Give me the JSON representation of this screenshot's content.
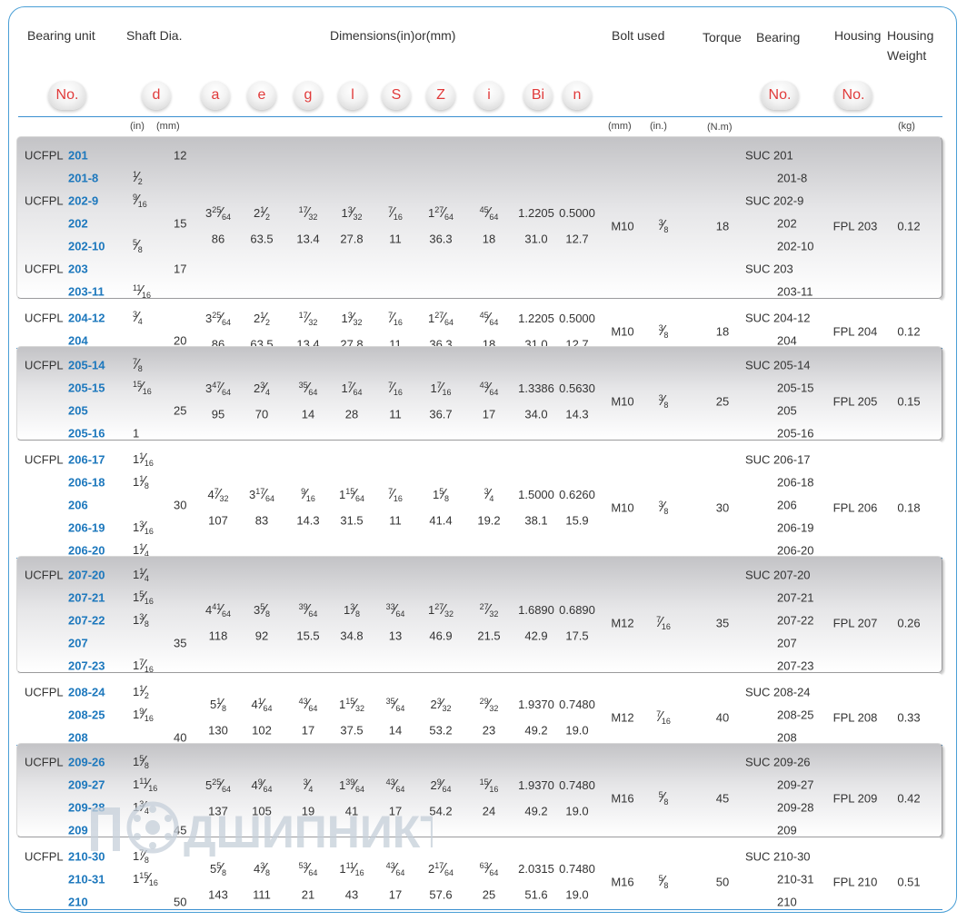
{
  "headers": {
    "bearing_unit": "Bearing unit",
    "shaft_dia": "Shaft Dia.",
    "dimensions": "Dimensions(in)or(mm)",
    "bolt_used": "Bolt  used",
    "torque": "Torque",
    "bearing": "Bearing",
    "housing": "Housing",
    "housing_weight_1": "Housing",
    "housing_weight_2": "Weight"
  },
  "symbols": {
    "no": "No.",
    "d": "d",
    "a": "a",
    "e": "e",
    "g": "g",
    "l": "l",
    "s": "S",
    "z": "Z",
    "i": "i",
    "bi": "Bi",
    "n": "n",
    "bearing_no": "No.",
    "housing_no": "No."
  },
  "units": {
    "in": "(in)",
    "mm": "(mm)",
    "bolt_mm": "(mm)",
    "bolt_in": "(in.)",
    "torque": "(N.m)",
    "weight": "(kg)"
  },
  "groups": [
    {
      "rows": [
        {
          "pre": "UCFPL",
          "num": "201",
          "d_mm": "12",
          "bearing": "SUC 201"
        },
        {
          "pre": "",
          "num": "201-8",
          "d_in": "1/2",
          "bearing": "201-8"
        },
        {
          "pre": "UCFPL",
          "num": "202-9",
          "d_in": "9/16",
          "bearing": "SUC 202-9"
        },
        {
          "pre": "",
          "num": "202",
          "d_mm": "15",
          "bearing": "202"
        },
        {
          "pre": "",
          "num": "202-10",
          "d_in": "5/8",
          "bearing": "202-10"
        },
        {
          "pre": "UCFPL",
          "num": "203",
          "d_mm": "17",
          "bearing": "SUC 203"
        },
        {
          "pre": "",
          "num": "203-11",
          "d_in": "11/16",
          "bearing": "203-11"
        }
      ],
      "in": [
        "3 25/64",
        "2 1/2",
        "17/32",
        "1 3/32",
        "7/16",
        "1 27/64",
        "45/64",
        "1.2205",
        "0.5000"
      ],
      "mm": [
        "86",
        "63.5",
        "13.4",
        "27.8",
        "11",
        "36.3",
        "18",
        "31.0",
        "12.7"
      ],
      "bolt_mm": "M10",
      "bolt_in": "3/8",
      "torque": "18",
      "housing": "FPL 203",
      "weight": "0.12"
    },
    {
      "rows": [
        {
          "pre": "UCFPL",
          "num": "204-12",
          "d_in": "3/4",
          "bearing": "SUC 204-12"
        },
        {
          "pre": "",
          "num": "204",
          "d_mm": "20",
          "bearing": "204"
        }
      ],
      "in": [
        "3 25/64",
        "2 1/2",
        "17/32",
        "1 3/32",
        "7/16",
        "1 27/64",
        "45/64",
        "1.2205",
        "0.5000"
      ],
      "mm": [
        "86",
        "63.5",
        "13.4",
        "27.8",
        "11",
        "36.3",
        "18",
        "31.0",
        "12.7"
      ],
      "bolt_mm": "M10",
      "bolt_in": "3/8",
      "torque": "18",
      "housing": "FPL 204",
      "weight": "0.12"
    },
    {
      "rows": [
        {
          "pre": "UCFPL",
          "num": "205-14",
          "d_in": "7/8",
          "bearing": "SUC 205-14"
        },
        {
          "pre": "",
          "num": "205-15",
          "d_in": "15/16",
          "bearing": "205-15"
        },
        {
          "pre": "",
          "num": "205",
          "d_mm": "25",
          "bearing": "205"
        },
        {
          "pre": "",
          "num": "205-16",
          "d_in": "1",
          "bearing": "205-16"
        }
      ],
      "in": [
        "3 47/64",
        "2 3/4",
        "35/64",
        "1 7/64",
        "7/16",
        "1 7/16",
        "43/64",
        "1.3386",
        "0.5630"
      ],
      "mm": [
        "95",
        "70",
        "14",
        "28",
        "11",
        "36.7",
        "17",
        "34.0",
        "14.3"
      ],
      "bolt_mm": "M10",
      "bolt_in": "3/8",
      "torque": "25",
      "housing": "FPL 205",
      "weight": "0.15"
    },
    {
      "rows": [
        {
          "pre": "UCFPL",
          "num": "206-17",
          "d_in": "1 1/16",
          "bearing": "SUC 206-17"
        },
        {
          "pre": "",
          "num": "206-18",
          "d_in": "1 1/8",
          "bearing": "206-18"
        },
        {
          "pre": "",
          "num": "206",
          "d_mm": "30",
          "bearing": "206"
        },
        {
          "pre": "",
          "num": "206-19",
          "d_in": "1 3/16",
          "bearing": "206-19"
        },
        {
          "pre": "",
          "num": "206-20",
          "d_in": "1 1/4",
          "bearing": "206-20"
        }
      ],
      "in": [
        "4 7/32",
        "3 17/64",
        "9/16",
        "1 15/64",
        "7/16",
        "1 5/8",
        "3/4",
        "1.5000",
        "0.6260"
      ],
      "mm": [
        "107",
        "83",
        "14.3",
        "31.5",
        "11",
        "41.4",
        "19.2",
        "38.1",
        "15.9"
      ],
      "bolt_mm": "M10",
      "bolt_in": "3/8",
      "torque": "30",
      "housing": "FPL 206",
      "weight": "0.18"
    },
    {
      "rows": [
        {
          "pre": "UCFPL",
          "num": "207-20",
          "d_in": "1 1/4",
          "bearing": "SUC 207-20"
        },
        {
          "pre": "",
          "num": "207-21",
          "d_in": "1 5/16",
          "bearing": "207-21"
        },
        {
          "pre": "",
          "num": "207-22",
          "d_in": "1 3/8",
          "bearing": "207-22"
        },
        {
          "pre": "",
          "num": "207",
          "d_mm": "35",
          "bearing": "207"
        },
        {
          "pre": "",
          "num": "207-23",
          "d_in": "1 7/16",
          "bearing": "207-23"
        }
      ],
      "in": [
        "4 41/64",
        "3 5/8",
        "39/64",
        "1 3/8",
        "33/64",
        "1 27/32",
        "27/32",
        "1.6890",
        "0.6890"
      ],
      "mm": [
        "118",
        "92",
        "15.5",
        "34.8",
        "13",
        "46.9",
        "21.5",
        "42.9",
        "17.5"
      ],
      "bolt_mm": "M12",
      "bolt_in": "7/16",
      "torque": "35",
      "housing": "FPL 207",
      "weight": "0.26"
    },
    {
      "rows": [
        {
          "pre": "UCFPL",
          "num": "208-24",
          "d_in": "1 1/2",
          "bearing": "SUC 208-24"
        },
        {
          "pre": "",
          "num": "208-25",
          "d_in": "1 9/16",
          "bearing": "208-25"
        },
        {
          "pre": "",
          "num": "208",
          "d_mm": "40",
          "bearing": "208"
        }
      ],
      "in": [
        "5 1/8",
        "4 1/64",
        "43/64",
        "1 15/32",
        "35/64",
        "2 3/32",
        "29/32",
        "1.9370",
        "0.7480"
      ],
      "mm": [
        "130",
        "102",
        "17",
        "37.5",
        "14",
        "53.2",
        "23",
        "49.2",
        "19.0"
      ],
      "bolt_mm": "M12",
      "bolt_in": "7/16",
      "torque": "40",
      "housing": "FPL 208",
      "weight": "0.33"
    },
    {
      "rows": [
        {
          "pre": "UCFPL",
          "num": "209-26",
          "d_in": "1 5/8",
          "bearing": "SUC 209-26"
        },
        {
          "pre": "",
          "num": "209-27",
          "d_in": "1 11/16",
          "bearing": "209-27"
        },
        {
          "pre": "",
          "num": "209-28",
          "d_in": "1 3/4",
          "bearing": "209-28"
        },
        {
          "pre": "",
          "num": "209",
          "d_mm": "45",
          "bearing": "209"
        }
      ],
      "in": [
        "5 25/64",
        "4 9/64",
        "3/4",
        "1 39/64",
        "43/64",
        "2 9/64",
        "15/16",
        "1.9370",
        "0.7480"
      ],
      "mm": [
        "137",
        "105",
        "19",
        "41",
        "17",
        "54.2",
        "24",
        "49.2",
        "19.0"
      ],
      "bolt_mm": "M16",
      "bolt_in": "5/8",
      "torque": "45",
      "housing": "FPL 209",
      "weight": "0.42"
    },
    {
      "rows": [
        {
          "pre": "UCFPL",
          "num": "210-30",
          "d_in": "1 7/8",
          "bearing": "SUC 210-30"
        },
        {
          "pre": "",
          "num": "210-31",
          "d_in": "1 15/16",
          "bearing": "210-31"
        },
        {
          "pre": "",
          "num": "210",
          "d_mm": "50",
          "bearing": "210"
        }
      ],
      "in": [
        "5 5/8",
        "4 3/8",
        "53/64",
        "1 11/16",
        "43/64",
        "2 17/64",
        "63/64",
        "2.0315",
        "0.7480"
      ],
      "mm": [
        "143",
        "111",
        "21",
        "43",
        "17",
        "57.6",
        "25",
        "51.6",
        "19.0"
      ],
      "bolt_mm": "M16",
      "bolt_in": "5/8",
      "torque": "50",
      "housing": "FPL 210",
      "weight": "0.51"
    }
  ],
  "watermark": {
    "text": "ДШИПНИКЪ",
    "color": "#b8c6d4"
  },
  "colors": {
    "accent": "#3a8fd0",
    "symbol": "#e03a3a",
    "number": "#1d78bd"
  }
}
